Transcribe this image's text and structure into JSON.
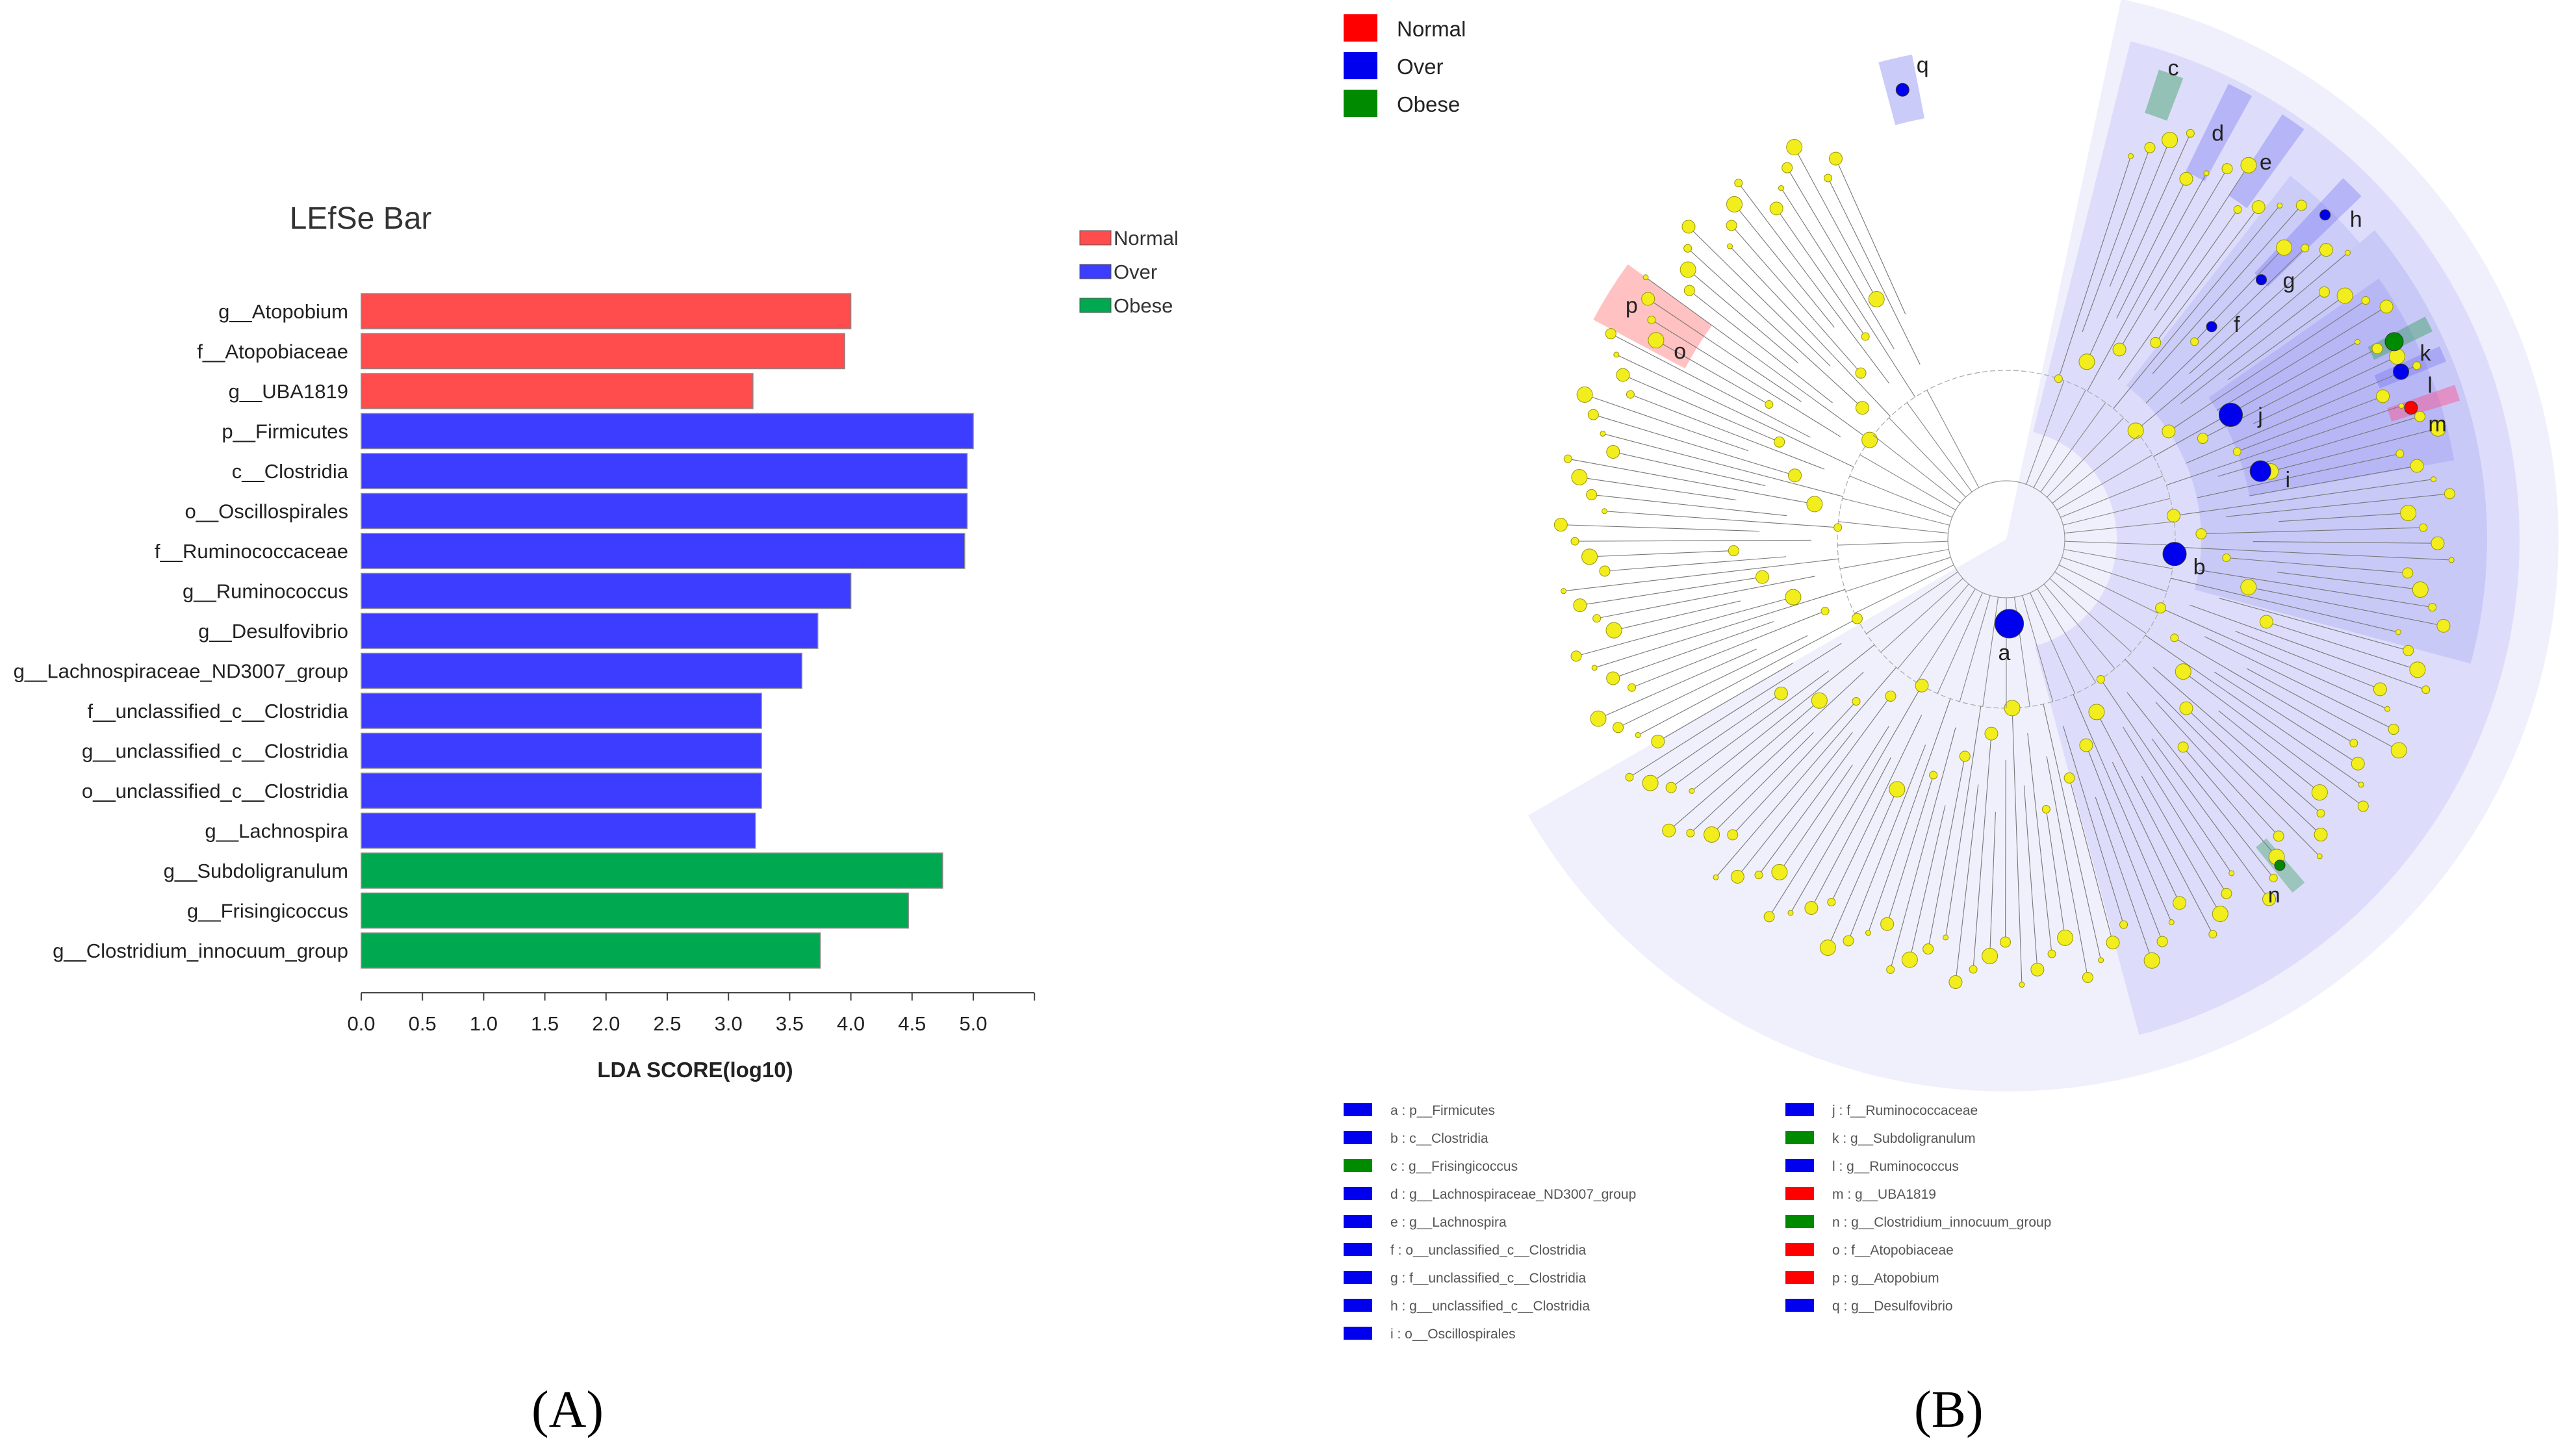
{
  "colors": {
    "Normal": "#ff4d4d",
    "Over": "#3d3dff",
    "Obese": "#00a84f",
    "cl_normal": "#ff0000",
    "cl_over": "#0000ee",
    "cl_obese": "#008a00",
    "node": "#f2ee1e",
    "shade": "#6a6af0"
  },
  "panel_labels": {
    "a": "(A)",
    "b": "(B)"
  },
  "chart_data": [
    {
      "type": "bar",
      "orientation": "horizontal",
      "title": "LEfSe Bar",
      "xlabel": "LDA SCORE(log10)",
      "xlim": [
        0,
        5.5
      ],
      "xticks": [
        "0.0",
        "0.5",
        "1.0",
        "1.5",
        "2.0",
        "2.5",
        "3.0",
        "3.5",
        "4.0",
        "4.5",
        "5.0"
      ],
      "legend": [
        "Normal",
        "Over",
        "Obese"
      ],
      "legend_position": "top-right",
      "grid": false,
      "categories": [
        "g__Atopobium",
        "f__Atopobiaceae",
        "g__UBA1819",
        "p__Firmicutes",
        "c__Clostridia",
        "o__Oscillospirales",
        "f__Ruminococcaceae",
        "g__Ruminococcus",
        "g__Desulfovibrio",
        "g__Lachnospiraceae_ND3007_group",
        "f__unclassified_c__Clostridia",
        "g__unclassified_c__Clostridia",
        "o__unclassified_c__Clostridia",
        "g__Lachnospira",
        "g__Subdoligranulum",
        "g__Frisingicoccus",
        "g__Clostridium_innocuum_group"
      ],
      "values": [
        4.0,
        3.95,
        3.2,
        5.0,
        4.95,
        4.95,
        4.93,
        4.0,
        3.73,
        3.6,
        3.27,
        3.27,
        3.27,
        3.22,
        4.75,
        4.47,
        3.75
      ],
      "groups": [
        "Normal",
        "Normal",
        "Normal",
        "Over",
        "Over",
        "Over",
        "Over",
        "Over",
        "Over",
        "Over",
        "Over",
        "Over",
        "Over",
        "Over",
        "Obese",
        "Obese",
        "Obese"
      ]
    },
    {
      "type": "cladogram",
      "legend": [
        "Normal",
        "Over",
        "Obese"
      ],
      "legend_position": "top-left",
      "clades": [
        {
          "letter": "a",
          "label": "a : p__Firmicutes",
          "group": "Over"
        },
        {
          "letter": "b",
          "label": "b : c__Clostridia",
          "group": "Over"
        },
        {
          "letter": "c",
          "label": "c : g__Frisingicoccus",
          "group": "Obese"
        },
        {
          "letter": "d",
          "label": "d : g__Lachnospiraceae_ND3007_group",
          "group": "Over"
        },
        {
          "letter": "e",
          "label": "e : g__Lachnospira",
          "group": "Over"
        },
        {
          "letter": "f",
          "label": "f : o__unclassified_c__Clostridia",
          "group": "Over"
        },
        {
          "letter": "g",
          "label": "g : f__unclassified_c__Clostridia",
          "group": "Over"
        },
        {
          "letter": "h",
          "label": "h : g__unclassified_c__Clostridia",
          "group": "Over"
        },
        {
          "letter": "i",
          "label": "i : o__Oscillospirales",
          "group": "Over"
        },
        {
          "letter": "j",
          "label": "j : f__Ruminococcaceae",
          "group": "Over"
        },
        {
          "letter": "k",
          "label": "k : g__Subdoligranulum",
          "group": "Obese"
        },
        {
          "letter": "l",
          "label": "l : g__Ruminococcus",
          "group": "Over"
        },
        {
          "letter": "m",
          "label": "m : g__UBA1819",
          "group": "Normal"
        },
        {
          "letter": "n",
          "label": "n : g__Clostridium_innocuum_group",
          "group": "Obese"
        },
        {
          "letter": "o",
          "label": "o : f__Atopobiaceae",
          "group": "Normal"
        },
        {
          "letter": "p",
          "label": "p : g__Atopobium",
          "group": "Normal"
        },
        {
          "letter": "q",
          "label": "q : g__Desulfovibrio",
          "group": "Over"
        }
      ]
    }
  ]
}
